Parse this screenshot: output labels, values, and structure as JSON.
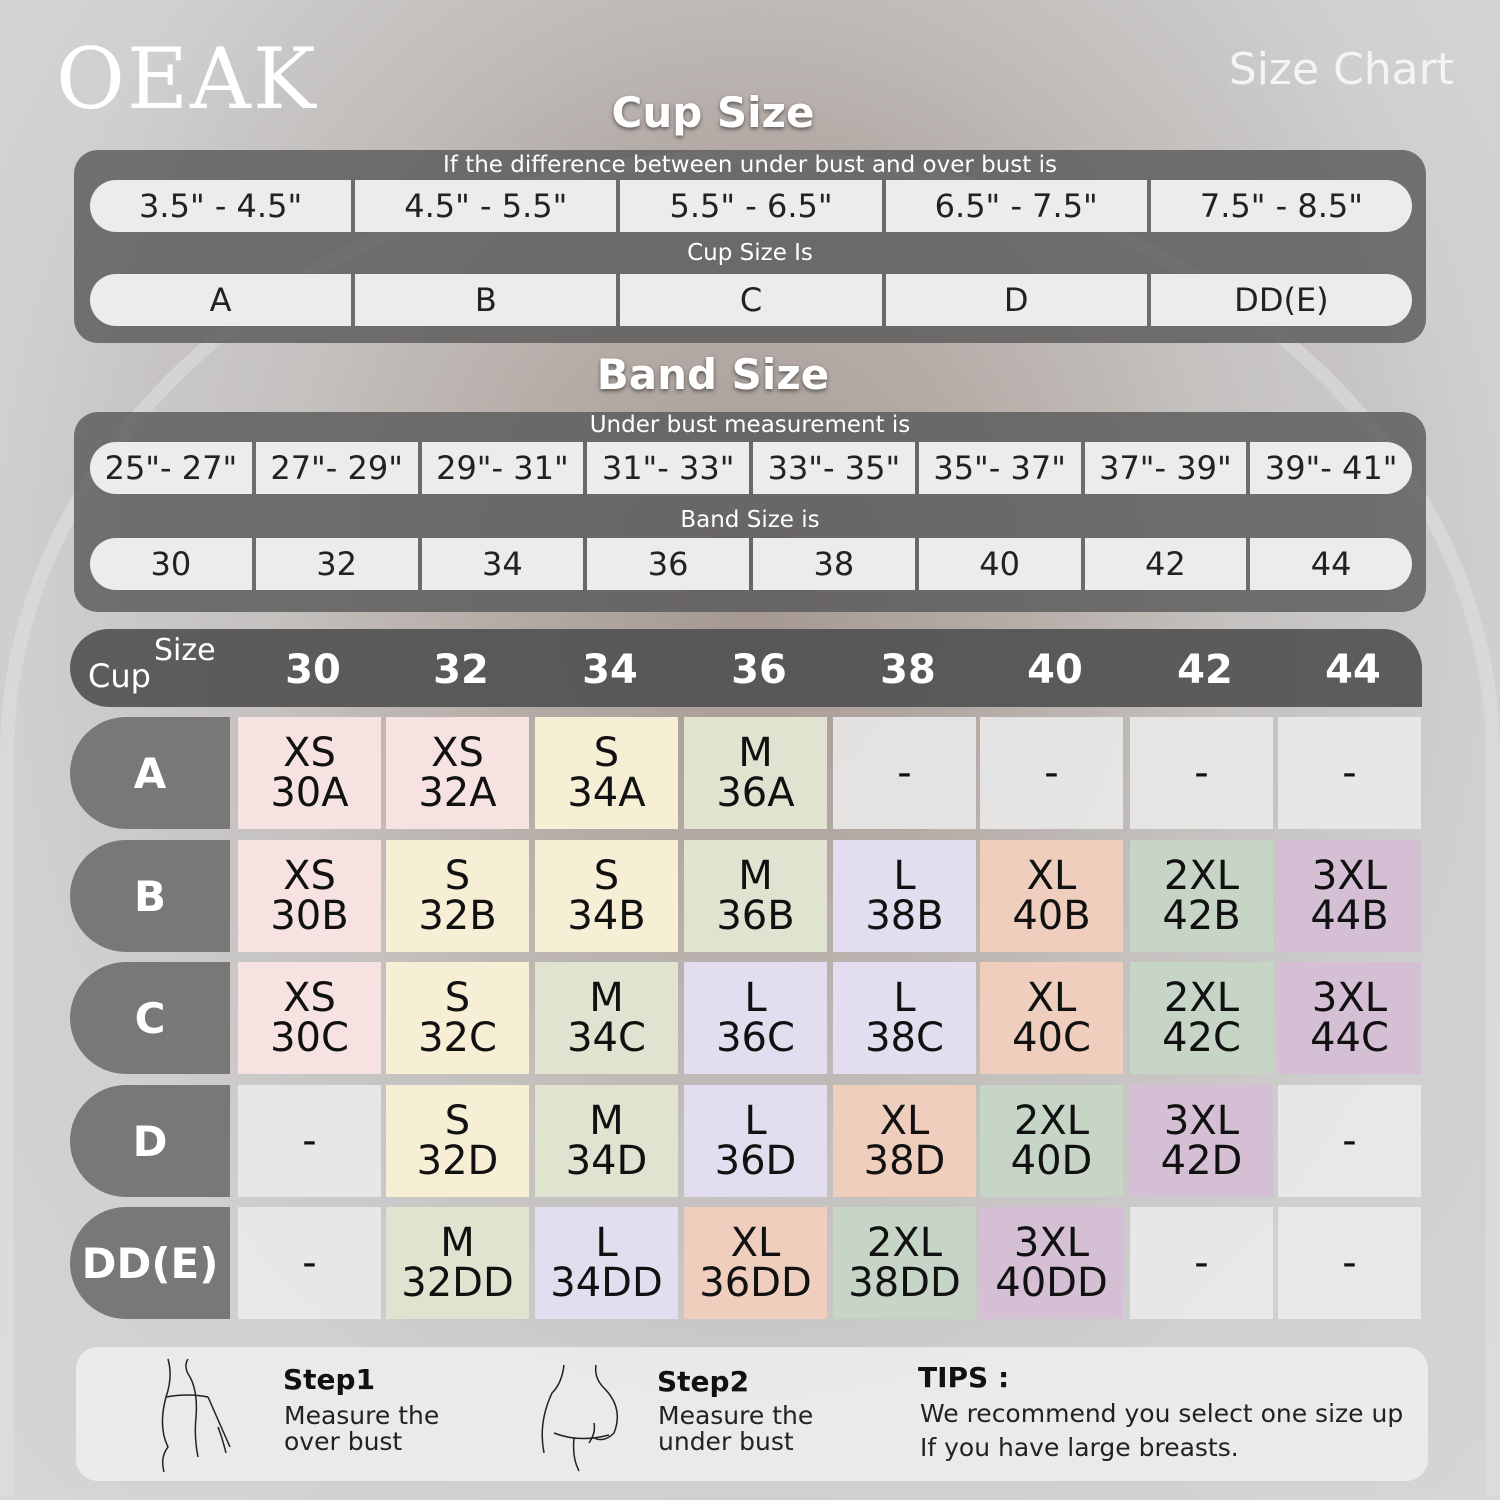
{
  "brand": "OEAK",
  "title": "Size Chart",
  "cup_section": {
    "title": "Cup Size",
    "caption_top": "If the  difference between under bust and over bust is",
    "differences": [
      "3.5\" -  4.5\"",
      "4.5\" -  5.5\"",
      "5.5\" -  6.5\"",
      "6.5\" -  7.5\"",
      "7.5\" -  8.5\""
    ],
    "caption_mid": "Cup Size Is",
    "cups": [
      "A",
      "B",
      "C",
      "D",
      "DD(E)"
    ]
  },
  "band_section": {
    "title": "Band Size",
    "caption_top": "Under bust measurement is",
    "ranges": [
      "25\"- 27\"",
      "27\"- 29\"",
      "29\"- 31\"",
      "31\"- 33\"",
      "33\"- 35\"",
      "35\"- 37\"",
      "37\"- 39\"",
      "39\"- 41\""
    ],
    "caption_mid": "Band Size is",
    "bands": [
      "30",
      "32",
      "34",
      "36",
      "38",
      "40",
      "42",
      "44"
    ]
  },
  "grid": {
    "corner_cup": "Cup",
    "corner_size": "Size",
    "columns": [
      "30",
      "32",
      "34",
      "36",
      "38",
      "40",
      "42",
      "44"
    ],
    "rows": [
      {
        "cup": "A",
        "cells": [
          [
            "XS",
            "30A"
          ],
          [
            "XS",
            "32A"
          ],
          [
            "S",
            "34A"
          ],
          [
            "M",
            "36A"
          ],
          [
            "-"
          ],
          [
            "-"
          ],
          [
            "-"
          ],
          [
            "-"
          ]
        ]
      },
      {
        "cup": "B",
        "cells": [
          [
            "XS",
            "30B"
          ],
          [
            "S",
            "32B"
          ],
          [
            "S",
            "34B"
          ],
          [
            "M",
            "36B"
          ],
          [
            "L",
            "38B"
          ],
          [
            "XL",
            "40B"
          ],
          [
            "2XL",
            "42B"
          ],
          [
            "3XL",
            "44B"
          ]
        ]
      },
      {
        "cup": "C",
        "cells": [
          [
            "XS",
            "30C"
          ],
          [
            "S",
            "32C"
          ],
          [
            "M",
            "34C"
          ],
          [
            "L",
            "36C"
          ],
          [
            "L",
            "38C"
          ],
          [
            "XL",
            "40C"
          ],
          [
            "2XL",
            "42C"
          ],
          [
            "3XL",
            "44C"
          ]
        ]
      },
      {
        "cup": "D",
        "cells": [
          [
            "-"
          ],
          [
            "S",
            "32D"
          ],
          [
            "M",
            "34D"
          ],
          [
            "L",
            "36D"
          ],
          [
            "XL",
            "38D"
          ],
          [
            "2XL",
            "40D"
          ],
          [
            "3XL",
            "42D"
          ],
          [
            "-"
          ]
        ]
      },
      {
        "cup": "DD(E)",
        "cells": [
          [
            "-"
          ],
          [
            "M",
            "32DD"
          ],
          [
            "L",
            "34DD"
          ],
          [
            "XL",
            "36DD"
          ],
          [
            "2XL",
            "38DD"
          ],
          [
            "3XL",
            "40DD"
          ],
          [
            "-"
          ],
          [
            "-"
          ]
        ]
      }
    ],
    "size_colors": {
      "XS": "#f6e2e0",
      "S": "#f6efd5",
      "M": "#dfe3d0",
      "L": "#e2def0",
      "XL": "#efcebe",
      "2XL": "#c7d5c6",
      "3XL": "#d5bfd4"
    }
  },
  "tips": {
    "step1_title": "Step1",
    "step1_text": "Measure the over bust",
    "step2_title": "Step2",
    "step2_text": "Measure the under bust",
    "tips_title": "TIPS :",
    "tips_line1": "We recommend you select one size up",
    "tips_line2": "If you have large breasts."
  }
}
